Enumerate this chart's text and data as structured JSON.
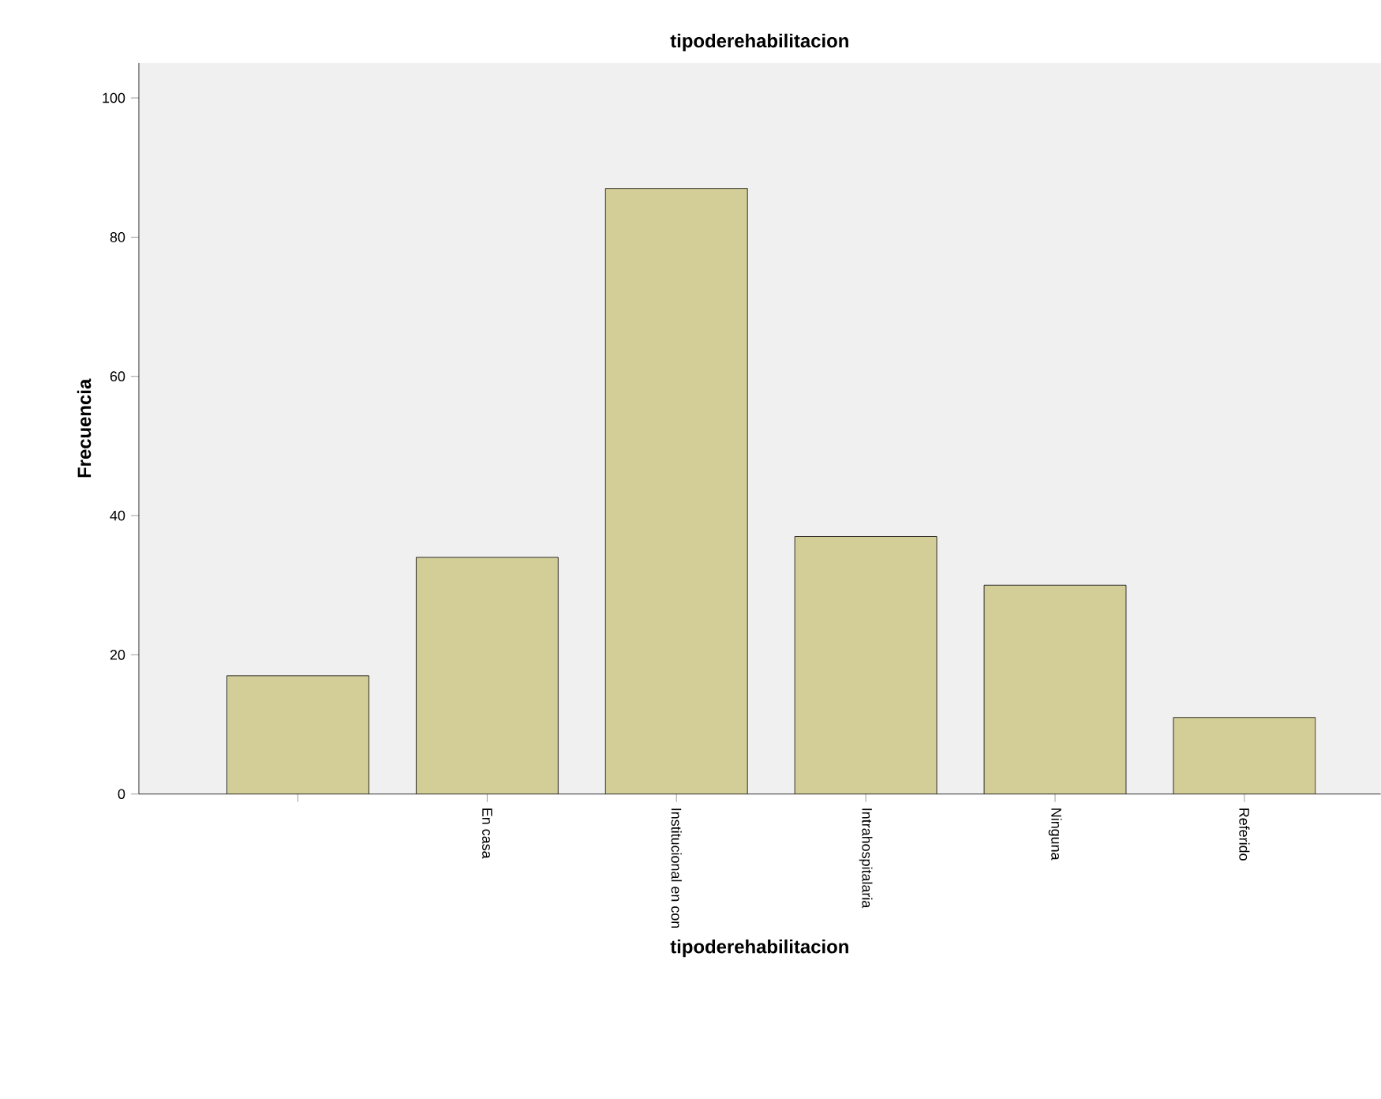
{
  "chart_data": {
    "type": "bar",
    "title": "tipoderehabilitacion",
    "xlabel": "tipoderehabilitacion",
    "ylabel": "Frecuencia",
    "categories": [
      null,
      "En casa",
      "Institucional en con",
      "Intrahospitalaria",
      "Ninguna",
      "Referido"
    ],
    "values": [
      17,
      34,
      87,
      37,
      30,
      11
    ],
    "color": "#d3ce97",
    "ylim": [
      0,
      105
    ],
    "yticks": [
      0,
      20,
      40,
      60,
      80,
      100
    ]
  }
}
